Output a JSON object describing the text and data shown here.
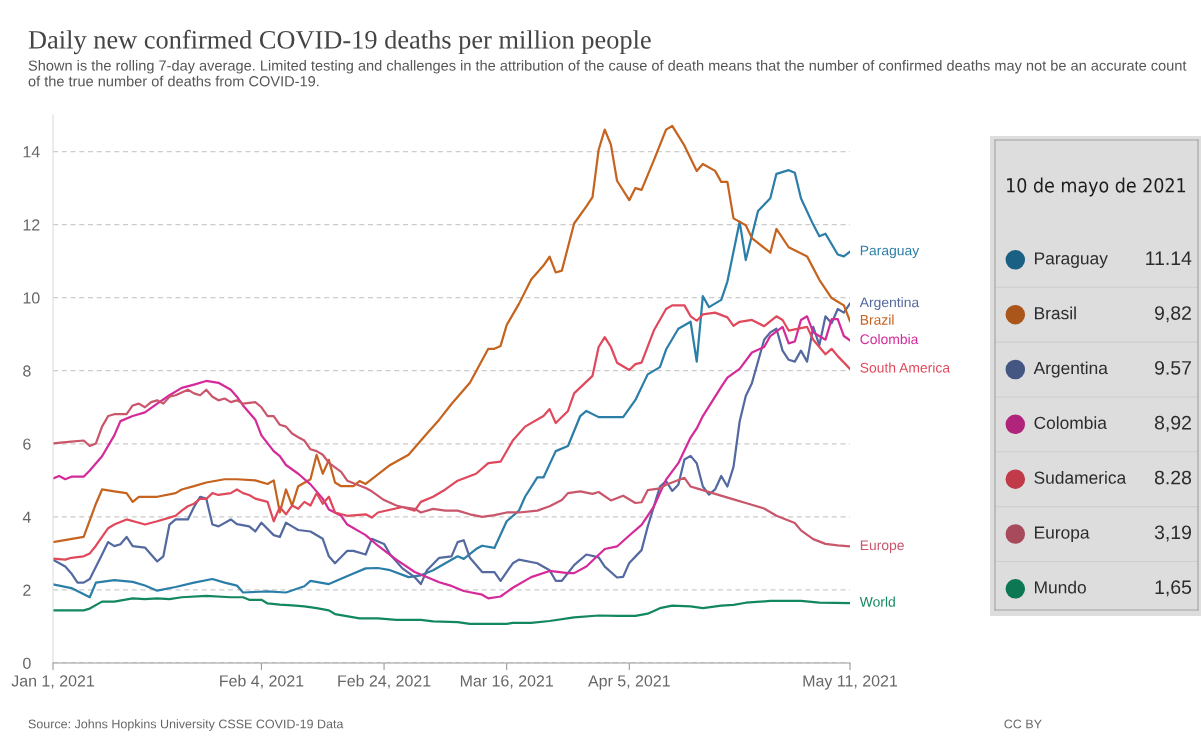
{
  "chart_data": [
    {
      "type": "line",
      "title": "Daily new confirmed COVID-19 deaths per million people",
      "subtitle": "Shown is the rolling 7-day average. Limited testing and challenges in the attribution of the cause of death means that the number of confirmed deaths may not be an accurate count of the true number of deaths from COVID-19.",
      "annotations": [
        "Source: Johns Hopkins University CSSE COVID-19 Data",
        "CC BY"
      ],
      "xlim": [
        "2021-01-01",
        "2021-05-11"
      ],
      "xticks": [
        {
          "value": "2021-01-01",
          "label": "Jan 1, 2021"
        },
        {
          "value": "2021-02-04",
          "label": "Feb 4, 2021"
        },
        {
          "value": "2021-02-24",
          "label": "Feb 24, 2021"
        },
        {
          "value": "2021-03-16",
          "label": "Mar 16, 2021"
        },
        {
          "value": "2021-04-05",
          "label": "Apr 5, 2021"
        },
        {
          "value": "2021-05-11",
          "label": "May 11, 2021"
        }
      ],
      "ylim": [
        0,
        15
      ],
      "yticks": [
        0,
        2,
        4,
        6,
        8,
        10,
        12,
        14
      ],
      "grid": "y",
      "line_style": "solid",
      "marker": "none",
      "series": [
        {
          "name": "Paraguay",
          "color": "#2b7ea8",
          "x": [
            "2021-01-01",
            "2021-01-04",
            "2021-01-07",
            "2021-01-08",
            "2021-01-11",
            "2021-01-14",
            "2021-01-16",
            "2021-01-18",
            "2021-01-21",
            "2021-01-24",
            "2021-01-27",
            "2021-01-29",
            "2021-01-31",
            "2021-02-01",
            "2021-02-05",
            "2021-02-08",
            "2021-02-11",
            "2021-02-12",
            "2021-02-15",
            "2021-02-19",
            "2021-02-21",
            "2021-02-23",
            "2021-02-25",
            "2021-02-28",
            "2021-03-02",
            "2021-03-04",
            "2021-03-08",
            "2021-03-09",
            "2021-03-11",
            "2021-03-12",
            "2021-03-14",
            "2021-03-16",
            "2021-03-18",
            "2021-03-19",
            "2021-03-21",
            "2021-03-22",
            "2021-03-24",
            "2021-03-26",
            "2021-03-28",
            "2021-03-29",
            "2021-03-31",
            "2021-04-02",
            "2021-04-04",
            "2021-04-06",
            "2021-04-08",
            "2021-04-10",
            "2021-04-11",
            "2021-04-13",
            "2021-04-15",
            "2021-04-16",
            "2021-04-17",
            "2021-04-18",
            "2021-04-20",
            "2021-04-21",
            "2021-04-23",
            "2021-04-24",
            "2021-04-26",
            "2021-04-28",
            "2021-04-29",
            "2021-05-01",
            "2021-05-02",
            "2021-05-03",
            "2021-05-05",
            "2021-05-06",
            "2021-05-07",
            "2021-05-09",
            "2021-05-10",
            "2021-05-11"
          ],
          "values": [
            2.15,
            2.05,
            1.8,
            2.2,
            2.27,
            2.22,
            2.12,
            1.98,
            2.08,
            2.2,
            2.3,
            2.2,
            2.12,
            1.93,
            1.96,
            1.93,
            2.1,
            2.25,
            2.16,
            2.45,
            2.59,
            2.6,
            2.54,
            2.35,
            2.4,
            2.54,
            2.92,
            2.85,
            3.12,
            3.21,
            3.15,
            3.88,
            4.17,
            4.55,
            5.08,
            5.08,
            5.8,
            5.94,
            6.76,
            6.9,
            6.73,
            6.73,
            6.73,
            7.2,
            7.9,
            8.1,
            8.58,
            9.15,
            9.34,
            8.25,
            10.04,
            9.74,
            9.94,
            10.44,
            12.08,
            11.03,
            12.37,
            12.72,
            13.39,
            13.49,
            13.42,
            12.72,
            12.0,
            11.68,
            11.75,
            11.18,
            11.13,
            11.26
          ]
        },
        {
          "name": "Argentina",
          "color": "#5369a0",
          "x": [
            "2021-01-01",
            "2021-01-03",
            "2021-01-04",
            "2021-01-05",
            "2021-01-06",
            "2021-01-07",
            "2021-01-09",
            "2021-01-10",
            "2021-01-11",
            "2021-01-12",
            "2021-01-13",
            "2021-01-14",
            "2021-01-16",
            "2021-01-17",
            "2021-01-18",
            "2021-01-19",
            "2021-01-20",
            "2021-01-21",
            "2021-01-23",
            "2021-01-24",
            "2021-01-25",
            "2021-01-26",
            "2021-01-27",
            "2021-01-28",
            "2021-01-30",
            "2021-01-31",
            "2021-02-02",
            "2021-02-03",
            "2021-02-04",
            "2021-02-06",
            "2021-02-07",
            "2021-02-08",
            "2021-02-09",
            "2021-02-10",
            "2021-02-12",
            "2021-02-14",
            "2021-02-15",
            "2021-02-16",
            "2021-02-18",
            "2021-02-19",
            "2021-02-21",
            "2021-02-22",
            "2021-02-24",
            "2021-02-25",
            "2021-02-27",
            "2021-03-01",
            "2021-03-02",
            "2021-03-03",
            "2021-03-05",
            "2021-03-07",
            "2021-03-08",
            "2021-03-09",
            "2021-03-10",
            "2021-03-12",
            "2021-03-14",
            "2021-03-15",
            "2021-03-17",
            "2021-03-18",
            "2021-03-21",
            "2021-03-23",
            "2021-03-24",
            "2021-03-25",
            "2021-03-27",
            "2021-03-29",
            "2021-03-31",
            "2021-04-01",
            "2021-04-03",
            "2021-04-04",
            "2021-04-05",
            "2021-04-07",
            "2021-04-08",
            "2021-04-10",
            "2021-04-11",
            "2021-04-12",
            "2021-04-13",
            "2021-04-14",
            "2021-04-15",
            "2021-04-16",
            "2021-04-17",
            "2021-04-18",
            "2021-04-19",
            "2021-04-20",
            "2021-04-21",
            "2021-04-22",
            "2021-04-23",
            "2021-04-24",
            "2021-04-25",
            "2021-04-27",
            "2021-04-28",
            "2021-04-29",
            "2021-04-30",
            "2021-05-01",
            "2021-05-02",
            "2021-05-03",
            "2021-05-04",
            "2021-05-05",
            "2021-05-06",
            "2021-05-07",
            "2021-05-08",
            "2021-05-09",
            "2021-05-10",
            "2021-05-11"
          ],
          "values": [
            2.83,
            2.64,
            2.45,
            2.2,
            2.2,
            2.3,
            2.97,
            3.31,
            3.2,
            3.25,
            3.45,
            3.2,
            3.16,
            2.97,
            2.78,
            2.92,
            3.79,
            3.93,
            3.93,
            4.27,
            4.55,
            4.5,
            3.79,
            3.74,
            3.93,
            3.8,
            3.74,
            3.6,
            3.84,
            3.5,
            3.45,
            3.84,
            3.74,
            3.64,
            3.6,
            3.4,
            2.92,
            2.73,
            3.07,
            3.07,
            2.97,
            3.4,
            3.26,
            2.97,
            2.59,
            2.35,
            2.16,
            2.54,
            2.88,
            2.92,
            3.31,
            3.36,
            2.88,
            2.49,
            2.49,
            2.25,
            2.73,
            2.83,
            2.73,
            2.54,
            2.25,
            2.25,
            2.68,
            2.97,
            2.89,
            2.64,
            2.34,
            2.36,
            2.74,
            3.09,
            3.73,
            4.83,
            4.98,
            4.71,
            4.88,
            5.57,
            5.67,
            5.47,
            4.83,
            4.61,
            4.75,
            5.12,
            4.83,
            5.37,
            6.61,
            7.31,
            7.66,
            8.85,
            9.05,
            9.15,
            8.55,
            8.3,
            8.25,
            8.55,
            8.25,
            9.2,
            8.7,
            9.49,
            9.3,
            9.69,
            9.59,
            9.84
          ]
        },
        {
          "name": "Brazil",
          "color": "#c5631f",
          "x": [
            "2021-01-01",
            "2021-01-06",
            "2021-01-08",
            "2021-01-09",
            "2021-01-11",
            "2021-01-13",
            "2021-01-14",
            "2021-01-15",
            "2021-01-18",
            "2021-01-21",
            "2021-01-22",
            "2021-01-24",
            "2021-01-26",
            "2021-01-29",
            "2021-01-31",
            "2021-02-03",
            "2021-02-05",
            "2021-02-06",
            "2021-02-07",
            "2021-02-08",
            "2021-02-09",
            "2021-02-10",
            "2021-02-12",
            "2021-02-13",
            "2021-02-14",
            "2021-02-15",
            "2021-02-16",
            "2021-02-17",
            "2021-02-19",
            "2021-02-20",
            "2021-02-21",
            "2021-02-25",
            "2021-02-28",
            "2021-03-03",
            "2021-03-05",
            "2021-03-07",
            "2021-03-10",
            "2021-03-13",
            "2021-03-14",
            "2021-03-15",
            "2021-03-16",
            "2021-03-18",
            "2021-03-20",
            "2021-03-22",
            "2021-03-23",
            "2021-03-24",
            "2021-03-25",
            "2021-03-27",
            "2021-03-29",
            "2021-03-30",
            "2021-03-31",
            "2021-04-01",
            "2021-04-02",
            "2021-04-03",
            "2021-04-05",
            "2021-04-06",
            "2021-04-07",
            "2021-04-09",
            "2021-04-11",
            "2021-04-12",
            "2021-04-14",
            "2021-04-16",
            "2021-04-17",
            "2021-04-19",
            "2021-04-20",
            "2021-04-21",
            "2021-04-22",
            "2021-04-24",
            "2021-04-25",
            "2021-04-28",
            "2021-04-29",
            "2021-05-01",
            "2021-05-04",
            "2021-05-06",
            "2021-05-08",
            "2021-05-10",
            "2021-05-11"
          ],
          "values": [
            3.31,
            3.45,
            4.36,
            4.75,
            4.7,
            4.65,
            4.41,
            4.55,
            4.55,
            4.65,
            4.75,
            4.84,
            4.94,
            5.03,
            5.03,
            5.0,
            4.9,
            5.0,
            4.12,
            4.75,
            4.31,
            4.84,
            5.03,
            5.7,
            5.18,
            5.56,
            4.94,
            4.84,
            4.84,
            4.98,
            4.9,
            5.42,
            5.7,
            6.28,
            6.66,
            7.09,
            7.67,
            8.6,
            8.6,
            8.68,
            9.25,
            9.83,
            10.5,
            10.88,
            11.12,
            10.69,
            10.74,
            12.03,
            12.5,
            12.75,
            14.05,
            14.6,
            14.19,
            13.2,
            12.67,
            13.0,
            12.95,
            13.76,
            14.6,
            14.7,
            14.16,
            13.47,
            13.66,
            13.47,
            13.17,
            13.17,
            12.17,
            11.98,
            11.63,
            11.23,
            11.88,
            11.38,
            11.13,
            10.49,
            9.99,
            9.79,
            9.36
          ]
        },
        {
          "name": "Colombia",
          "color": "#d42a9a",
          "x": [
            "2021-01-01",
            "2021-01-02",
            "2021-01-03",
            "2021-01-04",
            "2021-01-06",
            "2021-01-07",
            "2021-01-09",
            "2021-01-11",
            "2021-01-12",
            "2021-01-14",
            "2021-01-16",
            "2021-01-18",
            "2021-01-20",
            "2021-01-22",
            "2021-01-24",
            "2021-01-26",
            "2021-01-28",
            "2021-01-30",
            "2021-01-31",
            "2021-02-01",
            "2021-02-03",
            "2021-02-04",
            "2021-02-06",
            "2021-02-07",
            "2021-02-08",
            "2021-02-10",
            "2021-02-12",
            "2021-02-14",
            "2021-02-15",
            "2021-02-17",
            "2021-02-18",
            "2021-02-21",
            "2021-02-23",
            "2021-02-26",
            "2021-03-01",
            "2021-03-05",
            "2021-03-07",
            "2021-03-09",
            "2021-03-12",
            "2021-03-13",
            "2021-03-15",
            "2021-03-17",
            "2021-03-20",
            "2021-03-23",
            "2021-03-26",
            "2021-03-27",
            "2021-03-29",
            "2021-04-01",
            "2021-04-03",
            "2021-04-05",
            "2021-04-07",
            "2021-04-09",
            "2021-04-11",
            "2021-04-13",
            "2021-04-15",
            "2021-04-16",
            "2021-04-17",
            "2021-04-20",
            "2021-04-21",
            "2021-04-23",
            "2021-04-25",
            "2021-04-27",
            "2021-04-28",
            "2021-04-30",
            "2021-05-01",
            "2021-05-02",
            "2021-05-03",
            "2021-05-04",
            "2021-05-05",
            "2021-05-07",
            "2021-05-08",
            "2021-05-09",
            "2021-05-10",
            "2021-05-11"
          ],
          "values": [
            5.05,
            5.12,
            5.03,
            5.1,
            5.1,
            5.27,
            5.66,
            6.23,
            6.62,
            6.76,
            6.86,
            7.1,
            7.33,
            7.53,
            7.62,
            7.72,
            7.67,
            7.48,
            7.29,
            7.05,
            6.66,
            6.23,
            5.8,
            5.66,
            5.42,
            5.18,
            4.89,
            4.5,
            4.2,
            4.03,
            3.79,
            3.5,
            3.21,
            2.83,
            2.49,
            2.21,
            2.11,
            1.97,
            1.87,
            1.77,
            1.82,
            2.06,
            2.35,
            2.52,
            2.46,
            2.46,
            2.64,
            3.12,
            3.19,
            3.49,
            3.78,
            4.28,
            5.02,
            5.47,
            6.17,
            6.42,
            6.76,
            7.56,
            7.81,
            8.05,
            8.5,
            8.65,
            8.95,
            9.2,
            8.75,
            8.8,
            9.39,
            9.49,
            9.05,
            8.85,
            9.41,
            9.41,
            8.95,
            8.83
          ]
        },
        {
          "name": "South America",
          "color": "#e0485c",
          "x": [
            "2021-01-01",
            "2021-01-03",
            "2021-01-04",
            "2021-01-06",
            "2021-01-07",
            "2021-01-08",
            "2021-01-09",
            "2021-01-10",
            "2021-01-11",
            "2021-01-13",
            "2021-01-15",
            "2021-01-16",
            "2021-01-18",
            "2021-01-20",
            "2021-01-21",
            "2021-01-22",
            "2021-01-23",
            "2021-01-24",
            "2021-01-25",
            "2021-01-26",
            "2021-01-27",
            "2021-01-28",
            "2021-01-30",
            "2021-01-31",
            "2021-02-01",
            "2021-02-02",
            "2021-02-03",
            "2021-02-05",
            "2021-02-06",
            "2021-02-07",
            "2021-02-08",
            "2021-02-09",
            "2021-02-10",
            "2021-02-11",
            "2021-02-12",
            "2021-02-13",
            "2021-02-14",
            "2021-02-15",
            "2021-02-16",
            "2021-02-18",
            "2021-02-21",
            "2021-02-22",
            "2021-02-23",
            "2021-02-27",
            "2021-03-01",
            "2021-03-02",
            "2021-03-04",
            "2021-03-06",
            "2021-03-08",
            "2021-03-11",
            "2021-03-13",
            "2021-03-15",
            "2021-03-17",
            "2021-03-19",
            "2021-03-22",
            "2021-03-23",
            "2021-03-24",
            "2021-03-26",
            "2021-03-27",
            "2021-03-30",
            "2021-03-31",
            "2021-04-01",
            "2021-04-02",
            "2021-04-03",
            "2021-04-05",
            "2021-04-06",
            "2021-04-07",
            "2021-04-09",
            "2021-04-11",
            "2021-04-12",
            "2021-04-14",
            "2021-04-15",
            "2021-04-16",
            "2021-04-17",
            "2021-04-19",
            "2021-04-21",
            "2021-04-22",
            "2021-04-23",
            "2021-04-25",
            "2021-04-27",
            "2021-04-29",
            "2021-04-30",
            "2021-05-01",
            "2021-05-04",
            "2021-05-05",
            "2021-05-07",
            "2021-05-08",
            "2021-05-09",
            "2021-05-11"
          ],
          "values": [
            2.86,
            2.83,
            2.88,
            2.92,
            3.0,
            3.21,
            3.45,
            3.69,
            3.79,
            3.93,
            3.84,
            3.79,
            3.88,
            3.98,
            4.03,
            4.17,
            4.29,
            4.36,
            4.49,
            4.49,
            4.65,
            4.6,
            4.65,
            4.75,
            4.65,
            4.6,
            4.5,
            4.41,
            3.88,
            4.27,
            4.07,
            4.31,
            4.22,
            4.41,
            4.31,
            4.65,
            4.36,
            4.55,
            4.12,
            4.03,
            4.07,
            3.98,
            4.12,
            4.27,
            4.17,
            4.41,
            4.55,
            4.75,
            4.99,
            5.18,
            5.47,
            5.51,
            6.09,
            6.47,
            6.76,
            6.95,
            6.57,
            6.9,
            7.38,
            7.86,
            8.65,
            8.92,
            8.65,
            8.22,
            8.02,
            8.18,
            8.22,
            9.1,
            9.69,
            9.79,
            9.79,
            9.49,
            9.37,
            9.54,
            9.59,
            9.46,
            9.23,
            9.34,
            9.39,
            9.22,
            9.49,
            9.39,
            9.1,
            9.2,
            8.85,
            8.45,
            8.6,
            8.4,
            8.05
          ]
        },
        {
          "name": "Europe",
          "color": "#c9566b",
          "x": [
            "2021-01-01",
            "2021-01-04",
            "2021-01-06",
            "2021-01-07",
            "2021-01-08",
            "2021-01-09",
            "2021-01-10",
            "2021-01-11",
            "2021-01-13",
            "2021-01-14",
            "2021-01-15",
            "2021-01-16",
            "2021-01-17",
            "2021-01-18",
            "2021-01-19",
            "2021-01-20",
            "2021-01-21",
            "2021-01-23",
            "2021-01-24",
            "2021-01-25",
            "2021-01-26",
            "2021-01-27",
            "2021-01-28",
            "2021-01-29",
            "2021-01-30",
            "2021-01-31",
            "2021-02-01",
            "2021-02-03",
            "2021-02-04",
            "2021-02-05",
            "2021-02-06",
            "2021-02-07",
            "2021-02-08",
            "2021-02-09",
            "2021-02-10",
            "2021-02-11",
            "2021-02-12",
            "2021-02-13",
            "2021-02-14",
            "2021-02-15",
            "2021-02-17",
            "2021-02-18",
            "2021-02-21",
            "2021-02-22",
            "2021-02-24",
            "2021-02-26",
            "2021-02-27",
            "2021-03-01",
            "2021-03-02",
            "2021-03-04",
            "2021-03-06",
            "2021-03-08",
            "2021-03-10",
            "2021-03-12",
            "2021-03-14",
            "2021-03-16",
            "2021-03-18",
            "2021-03-21",
            "2021-03-23",
            "2021-03-25",
            "2021-03-26",
            "2021-03-28",
            "2021-03-30",
            "2021-03-31",
            "2021-04-02",
            "2021-04-04",
            "2021-04-06",
            "2021-04-07",
            "2021-04-08",
            "2021-04-10",
            "2021-04-11",
            "2021-04-14",
            "2021-04-15",
            "2021-04-16",
            "2021-04-19",
            "2021-04-22",
            "2021-04-24",
            "2021-04-27",
            "2021-04-29",
            "2021-05-02",
            "2021-05-03",
            "2021-05-05",
            "2021-05-07",
            "2021-05-09",
            "2021-05-11"
          ],
          "values": [
            6.01,
            6.06,
            6.09,
            5.94,
            6.01,
            6.47,
            6.76,
            6.81,
            6.81,
            7.05,
            7.1,
            7.0,
            7.14,
            7.19,
            7.1,
            7.29,
            7.33,
            7.48,
            7.38,
            7.33,
            7.48,
            7.29,
            7.19,
            7.24,
            7.14,
            7.19,
            7.1,
            7.14,
            7.0,
            6.76,
            6.76,
            6.52,
            6.47,
            6.28,
            6.18,
            6.09,
            5.85,
            5.8,
            5.7,
            5.48,
            5.23,
            4.99,
            4.79,
            4.7,
            4.46,
            4.31,
            4.27,
            4.22,
            4.12,
            4.22,
            4.17,
            4.17,
            4.07,
            4.0,
            4.05,
            4.12,
            4.12,
            4.17,
            4.29,
            4.46,
            4.65,
            4.7,
            4.63,
            4.68,
            4.45,
            4.58,
            4.38,
            4.4,
            4.73,
            4.78,
            4.88,
            5.07,
            4.83,
            4.78,
            4.63,
            4.48,
            4.38,
            4.23,
            4.03,
            3.83,
            3.63,
            3.39,
            3.26,
            3.22,
            3.19
          ]
        },
        {
          "name": "World",
          "color": "#13875e",
          "x": [
            "2021-01-01",
            "2021-01-06",
            "2021-01-07",
            "2021-01-09",
            "2021-01-11",
            "2021-01-14",
            "2021-01-16",
            "2021-01-18",
            "2021-01-20",
            "2021-01-22",
            "2021-01-26",
            "2021-01-30",
            "2021-02-01",
            "2021-02-02",
            "2021-02-04",
            "2021-02-05",
            "2021-02-07",
            "2021-02-09",
            "2021-02-11",
            "2021-02-13",
            "2021-02-15",
            "2021-02-16",
            "2021-02-20",
            "2021-02-23",
            "2021-02-26",
            "2021-03-02",
            "2021-03-04",
            "2021-03-08",
            "2021-03-10",
            "2021-03-16",
            "2021-03-17",
            "2021-03-20",
            "2021-03-23",
            "2021-03-27",
            "2021-03-31",
            "2021-04-03",
            "2021-04-06",
            "2021-04-08",
            "2021-04-10",
            "2021-04-12",
            "2021-04-15",
            "2021-04-17",
            "2021-04-20",
            "2021-04-22",
            "2021-04-24",
            "2021-04-28",
            "2021-05-03",
            "2021-05-06",
            "2021-05-11"
          ],
          "values": [
            1.44,
            1.44,
            1.49,
            1.68,
            1.68,
            1.77,
            1.75,
            1.77,
            1.75,
            1.8,
            1.84,
            1.8,
            1.8,
            1.73,
            1.73,
            1.63,
            1.6,
            1.58,
            1.55,
            1.5,
            1.44,
            1.34,
            1.22,
            1.22,
            1.18,
            1.18,
            1.14,
            1.12,
            1.07,
            1.07,
            1.1,
            1.1,
            1.15,
            1.25,
            1.3,
            1.29,
            1.29,
            1.35,
            1.5,
            1.57,
            1.55,
            1.5,
            1.57,
            1.59,
            1.65,
            1.7,
            1.7,
            1.65,
            1.64
          ]
        }
      ]
    },
    {
      "type": "other",
      "title": "10 de mayo de 2021",
      "categories": [
        "Paraguay",
        "Brasil",
        "Argentina",
        "Colombia",
        "Sudamerica",
        "Europa",
        "Mundo"
      ],
      "value_labels": [
        "11.14",
        "9,82",
        "9.57",
        "8,92",
        "8.28",
        "3,19",
        "1,65"
      ],
      "colors": [
        "#1f6f9a",
        "#c5631f",
        "#4f6497",
        "#cc2a8e",
        "#de4456",
        "#c2566a",
        "#0f8a62"
      ]
    }
  ]
}
